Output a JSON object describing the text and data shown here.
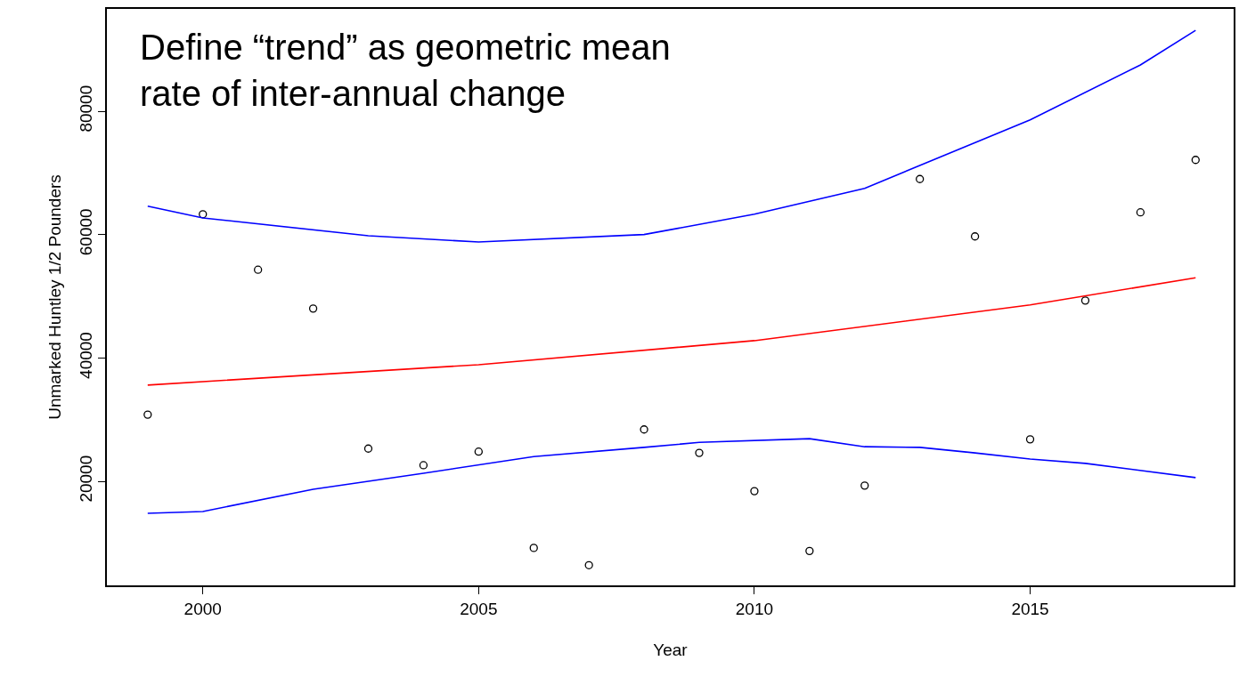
{
  "chart_data": {
    "type": "scatter",
    "xlabel": "Year",
    "ylabel": "Unmarked Huntley 1/2 Pounders",
    "annotations": [
      "Define “trend” as geometric mean rate of inter-annual change"
    ],
    "xlim": [
      1998.26,
      2018.69
    ],
    "xticks": [
      2000,
      2005,
      2010,
      2015
    ],
    "ylim": [
      3125,
      96586
    ],
    "yticks": [
      20000,
      40000,
      60000,
      80000
    ],
    "series": [
      {
        "marker": "circle",
        "color": "#000000",
        "x": [
          1999,
          2000,
          2001,
          2002,
          2003,
          2004,
          2005,
          2006,
          2007,
          2008,
          2009,
          2010,
          2011,
          2012,
          2013,
          2014,
          2015,
          2016,
          2017,
          2018
        ],
        "values": [
          30800,
          63300,
          54300,
          48000,
          25300,
          22600,
          24800,
          9200,
          6400,
          28400,
          24600,
          18400,
          8700,
          19300,
          69000,
          59700,
          26800,
          49300,
          63600,
          72100
        ]
      },
      {
        "type": "line",
        "marker": "none",
        "line_style": "solid",
        "color": "#ff0000",
        "x": [
          1999,
          2005,
          2010,
          2015,
          2018
        ],
        "values": [
          35600,
          38900,
          42800,
          48600,
          53000
        ]
      },
      {
        "type": "line",
        "marker": "none",
        "line_style": "solid",
        "color": "#0000ff",
        "x": [
          1999,
          2000,
          2003,
          2005,
          2008,
          2010,
          2012,
          2015,
          2017,
          2018
        ],
        "values": [
          64600,
          62700,
          59800,
          58800,
          60000,
          63300,
          67500,
          78600,
          87500,
          93100
        ]
      },
      {
        "type": "line",
        "marker": "none",
        "line_style": "solid",
        "color": "#0000ff",
        "x": [
          1999,
          2000,
          2002,
          2004,
          2006,
          2008,
          2009,
          2011,
          2012,
          2013,
          2014,
          2015,
          2016,
          2018
        ],
        "values": [
          14800,
          15100,
          18700,
          21300,
          24000,
          25500,
          26300,
          26900,
          25600,
          25500,
          24600,
          23600,
          22900,
          20600
        ]
      }
    ]
  }
}
